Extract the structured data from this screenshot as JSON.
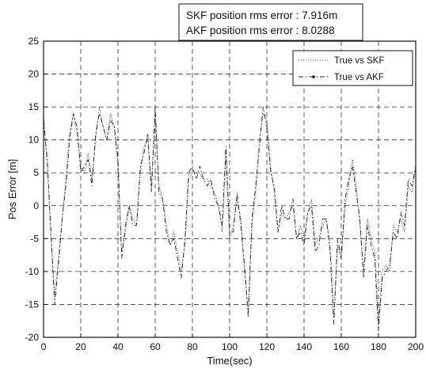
{
  "chart_data": {
    "type": "line",
    "xlabel": "Time(sec)",
    "ylabel": "Pos Error [m]",
    "xlim": [
      0,
      200
    ],
    "ylim": [
      -20,
      25
    ],
    "xticks": [
      0,
      20,
      40,
      60,
      80,
      100,
      120,
      140,
      160,
      180,
      200
    ],
    "yticks": [
      -20,
      -15,
      -10,
      -5,
      0,
      5,
      10,
      15,
      20,
      25
    ],
    "grid": true,
    "legend_position": "top-right",
    "annotations": [
      "SKF position rms error : 7.916m",
      "AKF position rms error : 8.0288"
    ],
    "series": [
      {
        "name": "True vs SKF",
        "color": "#555555",
        "style": "dotted",
        "x": [
          0,
          2,
          4,
          6,
          8,
          10,
          12,
          14,
          16,
          18,
          20,
          22,
          24,
          26,
          28,
          30,
          32,
          34,
          36,
          38,
          40,
          42,
          44,
          46,
          48,
          50,
          52,
          54,
          56,
          58,
          60,
          62,
          64,
          66,
          68,
          70,
          72,
          74,
          76,
          78,
          80,
          82,
          84,
          86,
          88,
          90,
          92,
          94,
          96,
          98,
          100,
          102,
          104,
          106,
          108,
          110,
          112,
          114,
          116,
          118,
          120,
          122,
          124,
          126,
          128,
          130,
          132,
          134,
          136,
          138,
          140,
          142,
          144,
          146,
          148,
          150,
          152,
          154,
          156,
          158,
          160,
          162,
          164,
          166,
          168,
          170,
          172,
          174,
          176,
          178,
          180,
          182,
          184,
          186,
          188,
          190,
          192,
          194,
          196,
          198,
          200
        ],
        "y": [
          14,
          6,
          -5,
          -14,
          -8,
          -2,
          4,
          11,
          14,
          11,
          6,
          5,
          8,
          4,
          10,
          15,
          12,
          10,
          14,
          12,
          6,
          -7,
          -4,
          0,
          -2,
          -3,
          5,
          9,
          10,
          3,
          14,
          3,
          1,
          -3,
          -6,
          -4,
          -7,
          -10,
          -6,
          4,
          5,
          5,
          5,
          4,
          4,
          3,
          2,
          0,
          -4,
          8,
          -5,
          -3,
          1,
          -2,
          -10,
          -16,
          -3,
          2,
          10,
          14,
          13,
          6,
          2,
          -4,
          -1,
          -2,
          -1,
          0,
          -5,
          -3,
          -5,
          -1,
          1,
          -6,
          -5,
          -3,
          -2,
          -6,
          -17,
          -6,
          -8,
          0,
          3,
          7,
          3,
          -3,
          -10,
          -2,
          -5,
          -7,
          -18,
          -10,
          -9,
          -10,
          -3,
          -4,
          -2,
          -4,
          3,
          2,
          6
        ]
      },
      {
        "name": "True vs AKF",
        "color": "#222222",
        "style": "dash-dot",
        "x": [
          0,
          2,
          4,
          6,
          8,
          10,
          12,
          14,
          16,
          18,
          20,
          22,
          24,
          26,
          28,
          30,
          32,
          34,
          36,
          38,
          40,
          42,
          44,
          46,
          48,
          50,
          52,
          54,
          56,
          58,
          60,
          62,
          64,
          66,
          68,
          70,
          72,
          74,
          76,
          78,
          80,
          82,
          84,
          86,
          88,
          90,
          92,
          94,
          96,
          98,
          100,
          102,
          104,
          106,
          108,
          110,
          112,
          114,
          116,
          118,
          120,
          122,
          124,
          126,
          128,
          130,
          132,
          134,
          136,
          138,
          140,
          142,
          144,
          146,
          148,
          150,
          152,
          154,
          156,
          158,
          160,
          162,
          164,
          166,
          168,
          170,
          172,
          174,
          176,
          178,
          180,
          182,
          184,
          186,
          188,
          190,
          192,
          194,
          196,
          198,
          200
        ],
        "y": [
          13,
          7,
          -4,
          -15,
          -9,
          -2,
          3,
          10,
          14,
          12,
          5,
          6,
          7,
          3,
          11,
          14,
          12,
          10,
          13,
          12,
          7,
          -8,
          -3,
          0,
          -3,
          -3,
          6,
          8,
          11,
          2,
          15,
          2,
          1,
          -4,
          -6,
          -5,
          -8,
          -11,
          -5,
          5,
          6,
          4,
          6,
          4,
          3,
          4,
          1,
          0,
          -3,
          9,
          -4,
          -4,
          2,
          -3,
          -9,
          -17,
          -2,
          3,
          9,
          15,
          12,
          5,
          3,
          -4,
          0,
          -2,
          -2,
          1,
          -5,
          -4,
          -6,
          -1,
          0,
          -7,
          -6,
          -2,
          -2,
          -7,
          -18,
          -5,
          -8,
          1,
          4,
          6,
          2,
          -2,
          -11,
          -3,
          -6,
          -8,
          -19,
          -11,
          -10,
          -9,
          -4,
          -5,
          -1,
          -3,
          4,
          3,
          6
        ]
      }
    ]
  }
}
